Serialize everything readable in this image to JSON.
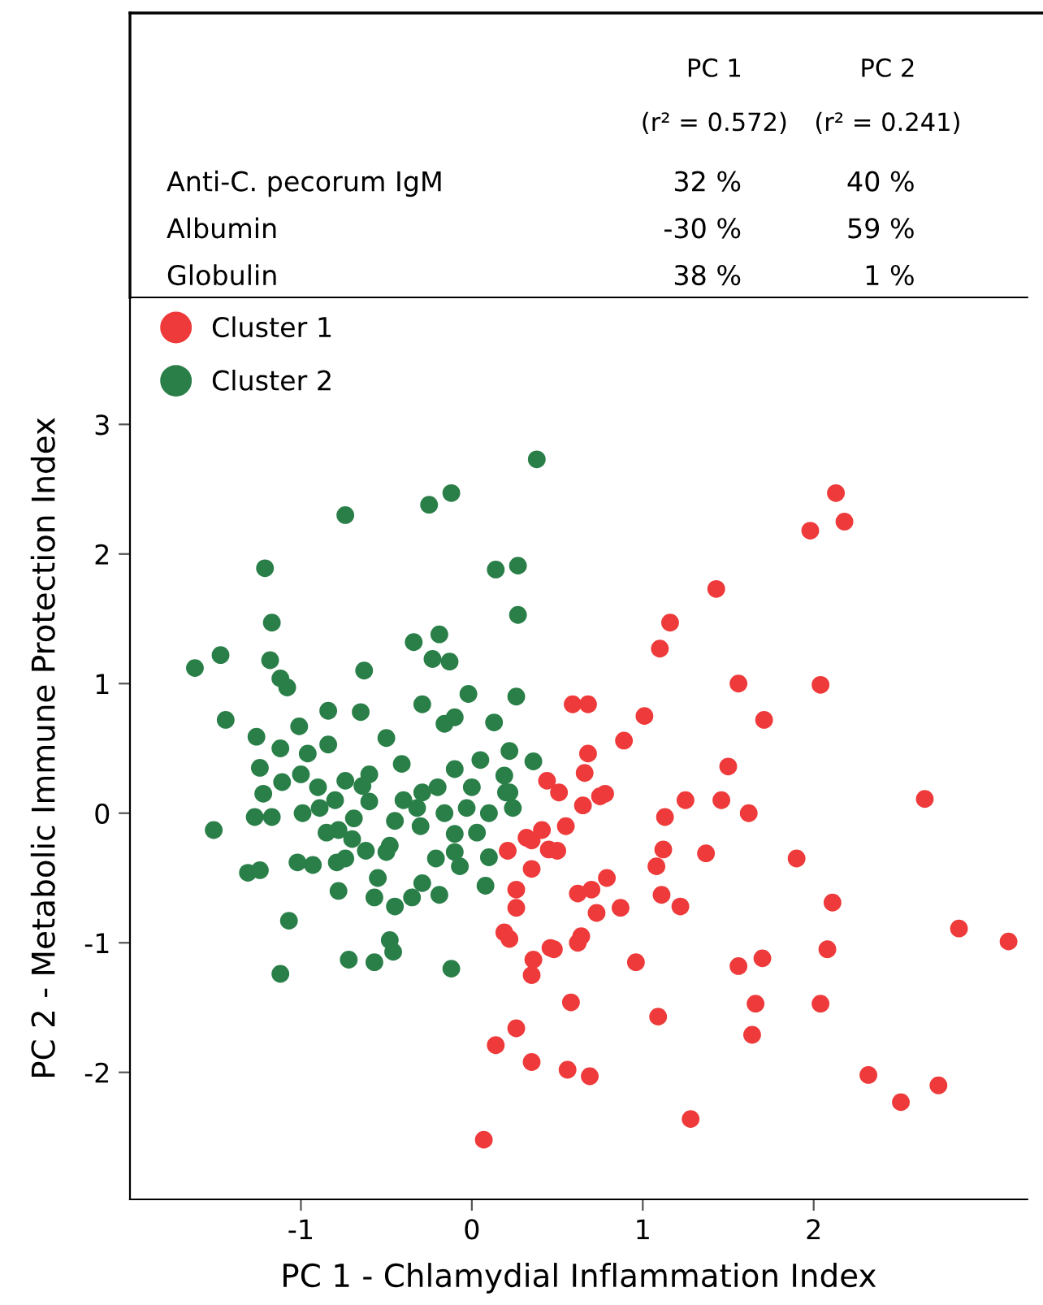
{
  "chart_data": {
    "type": "scatter",
    "xlabel": "PC 1 - Chlamydial Inflammation Index",
    "ylabel": "PC 2 - Metabolic Immune Protection Index",
    "xlim": [
      -2.0,
      3.25
    ],
    "ylim": [
      -2.98,
      3.98
    ],
    "xticks": [
      -1,
      0,
      1,
      2
    ],
    "yticks": [
      -2,
      -1,
      0,
      1,
      2,
      3
    ],
    "grid": false,
    "legend": "top left",
    "marker": "circle",
    "annotations": [
      "PC 1",
      "PC 2",
      "(r² = 0.572)",
      "(r² = 0.241)",
      "Anti-C. pecorum IgM",
      "32 %",
      "40 %",
      "Albumin",
      "-30 %",
      "59 %",
      "Globulin",
      "38 %",
      "1 %"
    ],
    "series": [
      {
        "name": "Cluster 1",
        "color": "#ee3a3a",
        "x": [
          0.21,
          0.35,
          0.41,
          0.35,
          0.26,
          0.26,
          0.19,
          0.22,
          0.46,
          0.36,
          0.35,
          0.26,
          0.14,
          0.35,
          0.07,
          0.51,
          0.65,
          0.75,
          0.78,
          1.25,
          1.46,
          1.62,
          2.65,
          1.13,
          0.55,
          0.32,
          0.45,
          0.5,
          1.12,
          1.08,
          1.37,
          1.9,
          0.62,
          0.7,
          0.79,
          0.73,
          0.87,
          1.11,
          1.22,
          2.11,
          0.62,
          0.64,
          0.48,
          0.96,
          1.56,
          1.7,
          2.08,
          2.85,
          3.14,
          0.58,
          1.09,
          1.66,
          1.64,
          2.04,
          0.56,
          0.69,
          2.32,
          2.51,
          2.73,
          1.28,
          2.13,
          2.18,
          1.98,
          1.43,
          1.16,
          1.1,
          1.56,
          2.04,
          1.71,
          0.59,
          0.68,
          1.01,
          0.89,
          0.68,
          0.66,
          1.5,
          0.44
        ],
        "values": [
          -0.29,
          -0.21,
          -0.13,
          -0.43,
          -0.59,
          -0.73,
          -0.92,
          -0.97,
          -1.04,
          -1.13,
          -1.25,
          -1.66,
          -1.79,
          -1.92,
          -2.52,
          0.16,
          0.06,
          0.13,
          0.15,
          0.1,
          0.1,
          0.0,
          0.11,
          -0.03,
          -0.1,
          -0.19,
          -0.28,
          -0.29,
          -0.28,
          -0.41,
          -0.31,
          -0.35,
          -0.62,
          -0.59,
          -0.5,
          -0.77,
          -0.73,
          -0.63,
          -0.72,
          -0.69,
          -1.0,
          -0.95,
          -1.05,
          -1.15,
          -1.18,
          -1.12,
          -1.05,
          -0.89,
          -0.99,
          -1.46,
          -1.57,
          -1.47,
          -1.71,
          -1.47,
          -1.98,
          -2.03,
          -2.02,
          -2.23,
          -2.1,
          -2.36,
          2.47,
          2.25,
          2.18,
          1.73,
          1.47,
          1.27,
          1.0,
          0.99,
          0.72,
          0.84,
          0.84,
          0.75,
          0.56,
          0.46,
          0.31,
          0.36,
          0.25
        ]
      },
      {
        "name": "Cluster 2",
        "color": "#2a7f48",
        "x": [
          0.38,
          -0.25,
          -0.12,
          -0.74,
          -1.21,
          0.14,
          0.27,
          0.27,
          -1.17,
          -0.34,
          -0.19,
          -0.23,
          -0.13,
          -1.62,
          -1.47,
          -1.18,
          -0.63,
          -1.12,
          -1.08,
          -0.02,
          0.26,
          -0.29,
          -1.44,
          0.13,
          -0.84,
          -0.65,
          -1.26,
          -1.01,
          -0.16,
          -0.1,
          -0.5,
          -1.24,
          -1.11,
          -1.22,
          -0.74,
          -0.64,
          0.22,
          0.36,
          0.05,
          -0.41,
          -0.1,
          0.19,
          -0.29,
          -1.12,
          -0.84,
          -0.96,
          -1.51,
          -1.27,
          -1.17,
          -0.99,
          -0.89,
          -0.78,
          -0.69,
          -0.6,
          -0.45,
          -0.48,
          -0.32,
          -0.16,
          -0.03,
          0.1,
          0.22,
          0.24,
          -1.31,
          -1.24,
          -1.02,
          -0.93,
          -0.79,
          -0.74,
          -0.62,
          -0.78,
          -0.57,
          -0.45,
          -0.35,
          -0.19,
          -0.55,
          -0.29,
          -0.21,
          -0.07,
          0.08,
          0.1,
          -0.1,
          0.03,
          -1.07,
          -0.48,
          -0.46,
          -0.72,
          -0.57,
          -1.12,
          -0.12,
          0.2,
          -0.9,
          -0.8,
          -0.7,
          -0.6,
          -0.5,
          -0.4,
          -0.3,
          -0.2,
          -0.1,
          0.0,
          -1.0,
          -0.85
        ],
        "values": [
          2.73,
          2.38,
          2.47,
          2.3,
          1.89,
          1.88,
          1.91,
          1.53,
          1.47,
          1.32,
          1.38,
          1.19,
          1.17,
          1.12,
          1.22,
          1.18,
          1.1,
          1.04,
          0.97,
          0.92,
          0.9,
          0.84,
          0.72,
          0.7,
          0.79,
          0.78,
          0.59,
          0.67,
          0.69,
          0.74,
          0.58,
          0.35,
          0.24,
          0.15,
          0.25,
          0.21,
          0.48,
          0.4,
          0.41,
          0.38,
          0.34,
          0.29,
          0.16,
          0.5,
          0.53,
          0.46,
          -0.13,
          -0.03,
          -0.03,
          0.0,
          0.04,
          -0.13,
          -0.04,
          0.09,
          -0.06,
          -0.25,
          0.04,
          0.0,
          0.04,
          0.0,
          0.16,
          0.04,
          -0.46,
          -0.44,
          -0.38,
          -0.4,
          -0.38,
          -0.35,
          -0.29,
          -0.6,
          -0.65,
          -0.72,
          -0.65,
          -0.63,
          -0.5,
          -0.54,
          -0.35,
          -0.41,
          -0.56,
          -0.34,
          -0.16,
          -0.15,
          -0.83,
          -0.98,
          -1.07,
          -1.13,
          -1.15,
          -1.24,
          -1.2,
          0.16,
          0.2,
          0.1,
          -0.2,
          0.3,
          -0.3,
          0.1,
          -0.1,
          0.2,
          -0.3,
          0.2,
          0.3,
          -0.15
        ]
      }
    ]
  }
}
